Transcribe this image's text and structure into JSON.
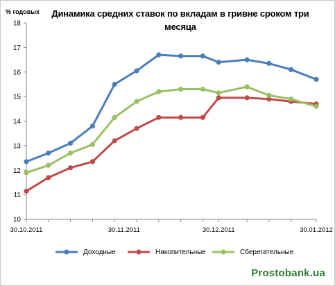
{
  "chart_data": {
    "type": "line",
    "title": "Динамика средних ставок по вкладам в гривне сроком три месяца",
    "ylabel": "% годовых",
    "xlabel": "",
    "ylim": [
      10,
      18
    ],
    "yticks": [
      10,
      11,
      12,
      13,
      14,
      15,
      16,
      17,
      18
    ],
    "xticks": [
      "30.10.2011",
      "30.11.2011",
      "30.12.2011",
      "30.01.2012"
    ],
    "x": [
      "2011-10-30",
      "2011-11-06",
      "2011-11-13",
      "2011-11-20",
      "2011-11-27",
      "2011-12-04",
      "2011-12-11",
      "2011-12-18",
      "2011-12-25",
      "2011-12-30",
      "2012-01-08",
      "2012-01-15",
      "2012-01-22",
      "2012-01-30"
    ],
    "grid": false,
    "legend_position": "bottom",
    "series": [
      {
        "name": "Доходные",
        "color": "#4a7ebb",
        "values": [
          12.35,
          12.7,
          13.1,
          13.8,
          15.5,
          16.05,
          16.7,
          16.65,
          16.65,
          16.4,
          16.5,
          16.35,
          16.1,
          15.7
        ]
      },
      {
        "name": "Накопительные",
        "color": "#be4b48",
        "values": [
          11.15,
          11.7,
          12.1,
          12.35,
          13.2,
          13.7,
          14.15,
          14.15,
          14.15,
          14.95,
          14.95,
          14.9,
          14.8,
          14.7
        ]
      },
      {
        "name": "Сберегательные",
        "color": "#98c063",
        "values": [
          11.9,
          12.2,
          12.7,
          13.05,
          14.15,
          14.8,
          15.2,
          15.3,
          15.3,
          15.15,
          15.4,
          15.05,
          14.9,
          14.6
        ]
      }
    ]
  },
  "watermark": "Prostobank.ua"
}
